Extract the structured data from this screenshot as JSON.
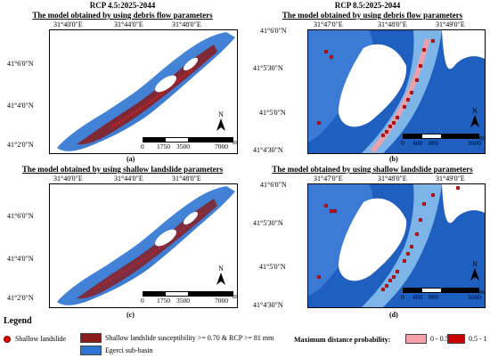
{
  "rcp45": "RCP 4.5:2025-2044",
  "rcp85": "RCP 8.5:2025-2044",
  "title_debris": "The model obtained by using debris flow parameters",
  "title_shallow": "The model obtained by using shallow landslide parameters",
  "left_x_ticks": [
    "31°40'0\"E",
    "31°44'0\"E",
    "31°48'0\"E"
  ],
  "left_y_ticks": [
    "41°6'0\"N",
    "41°4'0\"N",
    "41°2'0\"N"
  ],
  "right_x_ticks": [
    "31°47'0\"E",
    "31°48'0\"E",
    "31°49'0\"E"
  ],
  "right_y_ticks": [
    "41°6'0\"N",
    "41°5'30\"N",
    "41°5'0\"N",
    "41°4'30\"N"
  ],
  "left_scale": [
    "0",
    "1750",
    "3500",
    "7000",
    "m"
  ],
  "right_scale": [
    "0",
    "400",
    "800",
    "1600",
    "m"
  ],
  "north": "N",
  "panel_labels": [
    "(a)",
    "(b)",
    "(c)",
    "(d)"
  ],
  "legend": {
    "title": "Legend",
    "shallow_landslide": "Shallow landslide",
    "susceptibility": "Shallow landslide susceptibility >= 0.70 & RCP >= 81 mm",
    "basin": "Egerci sub-basin",
    "max_prob_title": "Maximum distance probability:",
    "range1": "0 - 0.5",
    "range2": "0.5 - 1"
  },
  "colors": {
    "basin": "#2f74d0",
    "susceptibility": "#8b1a1a",
    "landslide": "#e02020",
    "prob_low": "#f4a0a8",
    "prob_high": "#c80000"
  }
}
